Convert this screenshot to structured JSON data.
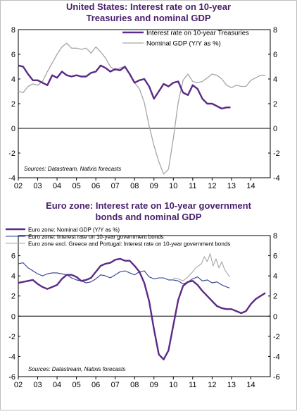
{
  "chart_data": [
    {
      "type": "line",
      "title": "United States: Interest rate on 10-year\nTreasuries and nominal GDP",
      "xlabel": "",
      "ylabel": "",
      "x_ticks": [
        "02",
        "03",
        "04",
        "05",
        "06",
        "07",
        "08",
        "09",
        "10",
        "11",
        "12",
        "13",
        "14"
      ],
      "xlim": [
        2002,
        2015
      ],
      "ylim": [
        -4,
        8
      ],
      "y_ticks": [
        -4,
        -2,
        0,
        2,
        4,
        6,
        8
      ],
      "y_ticks_right": [
        -4,
        -2,
        0,
        2,
        4,
        6,
        8
      ],
      "source": "Sources: Datastream, Natixis forecasts",
      "legend_position": "top-right",
      "series": [
        {
          "name": "Interest rate on 10-year Treasuries",
          "color": "#5b2a86",
          "width": 2.4,
          "x": [
            2002.0,
            2002.25,
            2002.5,
            2002.75,
            2003.0,
            2003.25,
            2003.5,
            2003.75,
            2004.0,
            2004.25,
            2004.5,
            2004.75,
            2005.0,
            2005.25,
            2005.5,
            2005.75,
            2006.0,
            2006.25,
            2006.5,
            2006.75,
            2007.0,
            2007.25,
            2007.5,
            2007.75,
            2008.0,
            2008.25,
            2008.5,
            2008.75,
            2009.0,
            2009.25,
            2009.5,
            2009.75,
            2010.0,
            2010.25,
            2010.5,
            2010.75,
            2011.0,
            2011.25,
            2011.5,
            2011.75,
            2012.0,
            2012.25,
            2012.5,
            2012.75,
            2012.95
          ],
          "values": [
            5.1,
            5.0,
            4.4,
            3.9,
            3.9,
            3.7,
            3.5,
            4.3,
            4.1,
            4.6,
            4.3,
            4.2,
            4.3,
            4.2,
            4.2,
            4.5,
            4.6,
            5.1,
            4.9,
            4.6,
            4.8,
            4.7,
            5.0,
            4.4,
            3.7,
            3.9,
            4.0,
            3.4,
            2.4,
            3.0,
            3.6,
            3.4,
            3.7,
            3.8,
            2.9,
            2.7,
            3.5,
            3.2,
            2.4,
            2.0,
            2.0,
            1.8,
            1.6,
            1.7,
            1.7
          ]
        },
        {
          "name": "Nominal GDP (Y/Y as %)",
          "color": "#a6a6a6",
          "width": 1.3,
          "x": [
            2002.0,
            2002.25,
            2002.5,
            2002.75,
            2003.0,
            2003.25,
            2003.5,
            2003.75,
            2004.0,
            2004.25,
            2004.5,
            2004.75,
            2005.0,
            2005.25,
            2005.5,
            2005.75,
            2006.0,
            2006.25,
            2006.5,
            2006.75,
            2007.0,
            2007.25,
            2007.5,
            2007.75,
            2008.0,
            2008.25,
            2008.5,
            2008.75,
            2009.0,
            2009.25,
            2009.5,
            2009.75,
            2010.0,
            2010.25,
            2010.5,
            2010.75,
            2011.0,
            2011.25,
            2011.5,
            2011.75,
            2012.0,
            2012.25,
            2012.5,
            2012.75,
            2013.0,
            2013.25,
            2013.5,
            2013.75,
            2014.0,
            2014.25,
            2014.5,
            2014.75
          ],
          "values": [
            3.0,
            2.9,
            3.4,
            3.6,
            3.5,
            3.8,
            4.6,
            5.3,
            6.0,
            6.6,
            6.9,
            6.5,
            6.5,
            6.4,
            6.5,
            6.1,
            6.6,
            6.2,
            5.7,
            5.0,
            4.7,
            4.9,
            5.0,
            4.4,
            3.7,
            3.2,
            2.1,
            0.2,
            -1.4,
            -2.7,
            -3.7,
            -3.3,
            -0.8,
            2.1,
            3.9,
            4.4,
            3.8,
            3.7,
            3.8,
            4.1,
            4.4,
            4.3,
            4.0,
            3.5,
            3.3,
            3.5,
            3.4,
            3.4,
            3.9,
            4.1,
            4.3,
            4.3
          ]
        }
      ]
    },
    {
      "type": "line",
      "title": "Euro zone: Interest rate on 10-year government\nbonds and nominal GDP",
      "xlabel": "",
      "ylabel": "",
      "x_ticks": [
        "02",
        "03",
        "04",
        "05",
        "06",
        "07",
        "08",
        "09",
        "10",
        "11",
        "12",
        "13",
        "14"
      ],
      "xlim": [
        2002,
        2015
      ],
      "ylim": [
        -6,
        8
      ],
      "y_ticks": [
        -6,
        -4,
        -2,
        0,
        2,
        4,
        6
      ],
      "y_ticks_right": [
        -6,
        -4,
        -2,
        0,
        2,
        4,
        6,
        8
      ],
      "source": "Sources: Datastream, Natixis forecasts",
      "legend_position": "top",
      "series": [
        {
          "name": "Euro zone: Nominal GDP (Y/Y as %)",
          "color": "#5b2a86",
          "width": 2.4,
          "x": [
            2002.0,
            2002.25,
            2002.5,
            2002.75,
            2003.0,
            2003.25,
            2003.5,
            2003.75,
            2004.0,
            2004.25,
            2004.5,
            2004.75,
            2005.0,
            2005.25,
            2005.5,
            2005.75,
            2006.0,
            2006.25,
            2006.5,
            2006.75,
            2007.0,
            2007.25,
            2007.5,
            2007.75,
            2008.0,
            2008.25,
            2008.5,
            2008.75,
            2009.0,
            2009.25,
            2009.5,
            2009.75,
            2010.0,
            2010.25,
            2010.5,
            2010.75,
            2011.0,
            2011.25,
            2011.5,
            2011.75,
            2012.0,
            2012.25,
            2012.5,
            2012.75,
            2013.0,
            2013.25,
            2013.5,
            2013.75,
            2014.0,
            2014.25,
            2014.5,
            2014.75
          ],
          "values": [
            3.3,
            3.4,
            3.5,
            3.6,
            3.2,
            2.9,
            2.7,
            2.9,
            3.1,
            3.7,
            4.1,
            4.1,
            3.9,
            3.5,
            3.6,
            3.8,
            4.4,
            5.0,
            5.2,
            5.3,
            5.6,
            5.7,
            5.5,
            5.5,
            5.0,
            4.4,
            3.3,
            1.5,
            -1.3,
            -3.8,
            -4.3,
            -3.4,
            -0.9,
            1.6,
            3.0,
            3.4,
            3.5,
            3.1,
            2.5,
            2.0,
            1.5,
            1.0,
            0.8,
            0.7,
            0.7,
            0.5,
            0.3,
            0.5,
            1.2,
            1.7,
            2.0,
            2.3
          ]
        },
        {
          "name": "Euro zone: Interest rate on 10-year government bonds",
          "color": "#2e3f8f",
          "width": 1.1,
          "x": [
            2002.0,
            2002.25,
            2002.5,
            2002.75,
            2003.0,
            2003.25,
            2003.5,
            2003.75,
            2004.0,
            2004.25,
            2004.5,
            2004.75,
            2005.0,
            2005.25,
            2005.5,
            2005.75,
            2006.0,
            2006.25,
            2006.5,
            2006.75,
            2007.0,
            2007.25,
            2007.5,
            2007.75,
            2008.0,
            2008.25,
            2008.5,
            2008.75,
            2009.0,
            2009.25,
            2009.5,
            2009.75,
            2010.0,
            2010.25,
            2010.5,
            2010.75,
            2011.0,
            2011.25,
            2011.5,
            2011.75,
            2012.0,
            2012.25,
            2012.5,
            2012.75,
            2012.9
          ],
          "values": [
            5.2,
            5.3,
            4.8,
            4.5,
            4.2,
            4.0,
            4.2,
            4.3,
            4.3,
            4.2,
            4.1,
            3.8,
            3.6,
            3.5,
            3.3,
            3.4,
            3.7,
            4.1,
            4.0,
            3.8,
            4.1,
            4.4,
            4.5,
            4.3,
            4.1,
            4.4,
            4.5,
            3.9,
            3.7,
            3.8,
            3.8,
            3.6,
            3.6,
            3.5,
            3.2,
            3.4,
            3.7,
            3.9,
            3.5,
            3.6,
            3.3,
            3.4,
            3.1,
            2.9,
            2.8
          ]
        },
        {
          "name": "Euro zone excl. Greece and Portugal: Interest rate on 10-year government bonds",
          "color": "#a6a6a6",
          "width": 1.1,
          "x": [
            2010.0,
            2010.25,
            2010.5,
            2010.75,
            2011.0,
            2011.15,
            2011.3,
            2011.45,
            2011.6,
            2011.75,
            2011.9,
            2012.05,
            2012.2,
            2012.35,
            2012.5,
            2012.65,
            2012.8,
            2012.9
          ],
          "values": [
            3.8,
            3.7,
            3.5,
            3.9,
            4.4,
            4.8,
            5.0,
            5.2,
            5.9,
            5.4,
            6.2,
            5.0,
            5.7,
            4.8,
            5.4,
            4.6,
            4.2,
            3.9
          ]
        }
      ]
    }
  ]
}
